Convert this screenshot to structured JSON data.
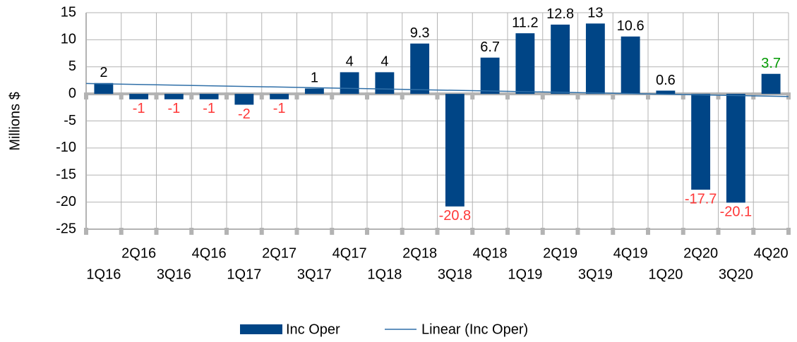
{
  "chart_data": {
    "type": "bar",
    "y_axis_label": "Millions $",
    "categories": [
      "1Q16",
      "2Q16",
      "3Q16",
      "4Q16",
      "1Q17",
      "2Q17",
      "3Q17",
      "4Q17",
      "1Q18",
      "2Q18",
      "3Q18",
      "4Q18",
      "1Q19",
      "2Q19",
      "3Q19",
      "4Q19",
      "1Q20",
      "2Q20",
      "3Q20",
      "4Q20"
    ],
    "series": [
      {
        "name": "Inc Oper",
        "color": "#004586",
        "values": [
          2,
          -1,
          -1,
          -1,
          -2,
          -1,
          1,
          4,
          4,
          9.3,
          -20.8,
          6.7,
          11.2,
          12.8,
          13,
          10.6,
          0.6,
          -17.7,
          -20.1,
          3.7
        ],
        "value_label_colors": [
          "#000000",
          "#ff3838",
          "#ff3838",
          "#ff3838",
          "#ff3838",
          "#ff3838",
          "#000000",
          "#000000",
          "#000000",
          "#000000",
          "#ff3838",
          "#000000",
          "#000000",
          "#000000",
          "#000000",
          "#000000",
          "#000000",
          "#ff3838",
          "#ff3838",
          "#009900"
        ]
      }
    ],
    "trendline": {
      "name": "Linear (Inc Oper)",
      "color": "#2f6fa8",
      "type": "linear"
    },
    "ylim": [
      -25,
      15
    ],
    "yticks": [
      -25,
      -20,
      -15,
      -10,
      -5,
      0,
      5,
      10,
      15
    ],
    "grid": true,
    "legend": "bottom"
  }
}
